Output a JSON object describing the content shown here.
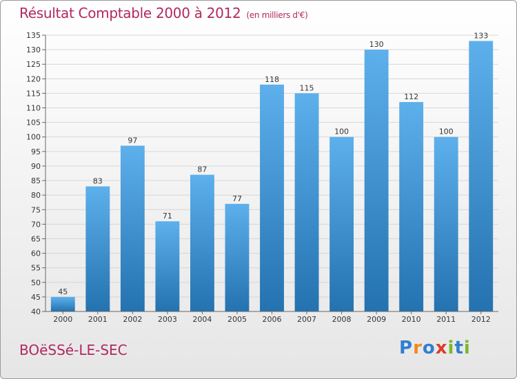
{
  "title": "Résultat Comptable 2000 à 2012",
  "subtitle": "(en milliers d'€)",
  "town": "BOëSSé-LE-SEC",
  "logo": {
    "letters": [
      "P",
      "r",
      "o",
      "x",
      "i",
      "t",
      "i"
    ],
    "colors": [
      "#2f7fd0",
      "#f08a1c",
      "#2f7fd0",
      "#e03a2a",
      "#7ab828",
      "#2f7fd0",
      "#7ab828"
    ]
  },
  "colors": {
    "bar_top": "#5db0ec",
    "bar_bottom": "#2472b0",
    "title": "#b02860"
  },
  "chart_data": {
    "type": "bar",
    "categories": [
      "2000",
      "2001",
      "2002",
      "2003",
      "2004",
      "2005",
      "2006",
      "2007",
      "2008",
      "2009",
      "2010",
      "2011",
      "2012"
    ],
    "values": [
      45,
      83,
      97,
      71,
      87,
      77,
      118,
      115,
      100,
      130,
      112,
      100,
      133
    ],
    "title": "Résultat Comptable 2000 à 2012",
    "xlabel": "",
    "ylabel": "",
    "ylim": [
      40,
      135
    ],
    "yticks": [
      40,
      45,
      50,
      55,
      60,
      65,
      70,
      75,
      80,
      85,
      90,
      95,
      100,
      105,
      110,
      115,
      120,
      125,
      130,
      135
    ],
    "grid": true
  }
}
